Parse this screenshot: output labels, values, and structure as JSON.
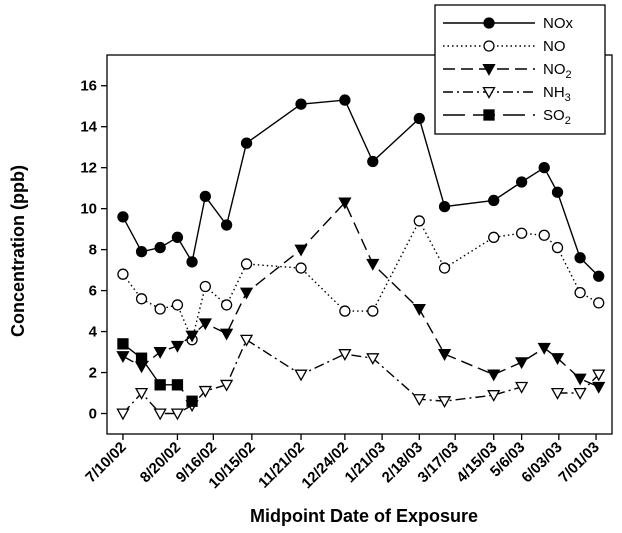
{
  "chart_data": {
    "type": "line",
    "title": "",
    "xlabel": "Midpoint Date of Exposure",
    "ylabel": "Concentration (ppb)",
    "ylim": [
      -1,
      17.5
    ],
    "yticks": [
      0,
      2,
      4,
      6,
      8,
      10,
      12,
      14,
      16
    ],
    "grid": false,
    "legend": "top-right",
    "x_tick_labels": [
      "7/10/02",
      "8/20/02",
      "9/16/02",
      "10/15/02",
      "11/21/02",
      "12/24/02",
      "1/21/03",
      "2/18/03",
      "3/17/03",
      "4/15/03",
      "5/6/03",
      "6/03/03",
      "7/01/03"
    ],
    "x_tick_dates": [
      "2002-07-10",
      "2002-08-20",
      "2002-09-16",
      "2002-10-15",
      "2002-11-21",
      "2002-12-24",
      "2003-01-21",
      "2003-02-18",
      "2003-03-17",
      "2003-04-15",
      "2003-05-06",
      "2003-06-03",
      "2003-07-01"
    ],
    "series": [
      {
        "name": "NOx",
        "sub": "",
        "marker": "circle-filled",
        "dash": "solid",
        "color": "#000000",
        "points": [
          [
            "2002-07-10",
            9.6
          ],
          [
            "2002-07-24",
            7.9
          ],
          [
            "2002-08-07",
            8.1
          ],
          [
            "2002-08-20",
            8.6
          ],
          [
            "2002-08-31",
            7.4
          ],
          [
            "2002-09-10",
            10.6
          ],
          [
            "2002-09-26",
            9.2
          ],
          [
            "2002-10-11",
            13.2
          ],
          [
            "2002-11-21",
            15.1
          ],
          [
            "2002-12-24",
            15.3
          ],
          [
            "2003-01-14",
            12.3
          ],
          [
            "2003-02-18",
            14.4
          ],
          [
            "2003-03-09",
            10.1
          ],
          [
            "2003-04-15",
            10.4
          ],
          [
            "2003-05-06",
            11.3
          ],
          [
            "2003-05-23",
            12.0
          ],
          [
            "2003-06-02",
            10.8
          ],
          [
            "2003-06-19",
            7.6
          ],
          [
            "2003-07-03",
            6.7
          ]
        ]
      },
      {
        "name": "NO",
        "sub": "",
        "marker": "circle-open",
        "dash": "dotted",
        "color": "#000000",
        "points": [
          [
            "2002-07-10",
            6.8
          ],
          [
            "2002-07-24",
            5.6
          ],
          [
            "2002-08-07",
            5.1
          ],
          [
            "2002-08-20",
            5.3
          ],
          [
            "2002-08-31",
            3.6
          ],
          [
            "2002-09-10",
            6.2
          ],
          [
            "2002-09-26",
            5.3
          ],
          [
            "2002-10-11",
            7.3
          ],
          [
            "2002-11-21",
            7.1
          ],
          [
            "2002-12-24",
            5.0
          ],
          [
            "2003-01-14",
            5.0
          ],
          [
            "2003-02-18",
            9.4
          ],
          [
            "2003-03-09",
            7.1
          ],
          [
            "2003-04-15",
            8.6
          ],
          [
            "2003-05-06",
            8.8
          ],
          [
            "2003-05-23",
            8.7
          ],
          [
            "2003-06-02",
            8.1
          ],
          [
            "2003-06-19",
            5.9
          ],
          [
            "2003-07-03",
            5.4
          ]
        ]
      },
      {
        "name": "NO",
        "sub": "2",
        "marker": "triangle-down-filled",
        "dash": "dashed",
        "color": "#000000",
        "points": [
          [
            "2002-07-10",
            2.8
          ],
          [
            "2002-07-24",
            2.3
          ],
          [
            "2002-08-07",
            3.0
          ],
          [
            "2002-08-20",
            3.3
          ],
          [
            "2002-08-31",
            3.8
          ],
          [
            "2002-09-10",
            4.4
          ],
          [
            "2002-09-26",
            3.9
          ],
          [
            "2002-10-11",
            5.9
          ],
          [
            "2002-11-21",
            8.0
          ],
          [
            "2002-12-24",
            10.3
          ],
          [
            "2003-01-14",
            7.3
          ],
          [
            "2003-02-18",
            5.1
          ],
          [
            "2003-03-09",
            2.9
          ],
          [
            "2003-04-15",
            1.9
          ],
          [
            "2003-05-06",
            2.5
          ],
          [
            "2003-05-23",
            3.2
          ],
          [
            "2003-06-02",
            2.7
          ],
          [
            "2003-06-19",
            1.7
          ],
          [
            "2003-07-03",
            1.3
          ]
        ]
      },
      {
        "name": "NH",
        "sub": "3",
        "marker": "triangle-down-open",
        "dash": "dashdot",
        "color": "#000000",
        "points": [
          [
            "2002-07-10",
            0.0
          ],
          [
            "2002-07-24",
            1.0
          ],
          [
            "2002-08-07",
            0.0
          ],
          [
            "2002-08-20",
            0.0
          ],
          [
            "2002-08-31",
            0.4
          ],
          [
            "2002-09-10",
            1.1
          ],
          [
            "2002-09-26",
            1.4
          ],
          [
            "2002-10-11",
            3.6
          ],
          [
            "2002-11-21",
            1.9
          ],
          [
            "2002-12-24",
            2.9
          ],
          [
            "2003-01-14",
            2.7
          ],
          [
            "2003-02-18",
            0.7
          ],
          [
            "2003-03-09",
            0.6
          ],
          [
            "2003-04-15",
            0.9
          ],
          [
            "2003-05-06",
            1.3
          ],
          null,
          [
            "2003-06-02",
            1.0
          ],
          [
            "2003-06-19",
            1.0
          ],
          [
            "2003-07-03",
            1.9
          ]
        ]
      },
      {
        "name": "SO",
        "sub": "2",
        "marker": "square-filled",
        "dash": "longdash",
        "color": "#000000",
        "points": [
          [
            "2002-07-10",
            3.4
          ],
          [
            "2002-07-24",
            2.7
          ],
          [
            "2002-08-07",
            1.4
          ],
          [
            "2002-08-20",
            1.4
          ],
          [
            "2002-08-31",
            0.6
          ]
        ]
      }
    ]
  }
}
